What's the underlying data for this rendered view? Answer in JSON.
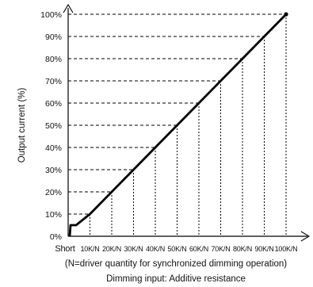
{
  "chart_data": {
    "type": "line",
    "title": "",
    "xlabel": "Dimming input: Additive resistance",
    "x_note": "(N=driver quantity for synchronized dimming operation)",
    "ylabel": "Output current (%)",
    "categories": [
      "Short",
      "10K/N",
      "20K/N",
      "30K/N",
      "40K/N",
      "50K/N",
      "60K/N",
      "70K/N",
      "80K/N",
      "90K/N",
      "100K/N"
    ],
    "y_ticks": [
      "0%",
      "10%",
      "20%",
      "30%",
      "40%",
      "50%",
      "60%",
      "70%",
      "80%",
      "90%",
      "100%"
    ],
    "ylim": [
      0,
      100
    ],
    "series": [
      {
        "values": [
          5,
          10,
          20,
          30,
          40,
          50,
          60,
          70,
          80,
          90,
          100
        ]
      }
    ],
    "grid": "dashed guides from each point to axes",
    "line_color": "#000000"
  }
}
